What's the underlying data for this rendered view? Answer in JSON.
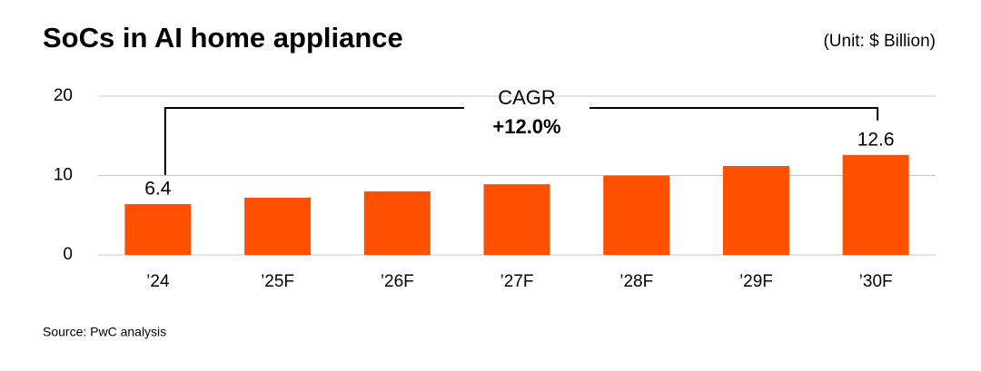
{
  "chart_data": {
    "type": "bar",
    "title": "SoCs in AI home appliance",
    "subtitle": "(Unit: $ Billion)",
    "categories": [
      "’24",
      "’25F",
      "’26F",
      "’27F",
      "’28F",
      "’29F",
      "’30F"
    ],
    "values": [
      6.4,
      7.2,
      8.0,
      8.9,
      10.0,
      11.2,
      12.6
    ],
    "value_labels": [
      "6.4",
      null,
      null,
      null,
      null,
      null,
      "12.6"
    ],
    "color": "#fe5000",
    "ylim": [
      0,
      20
    ],
    "yticks": [
      0,
      10,
      20
    ],
    "grid": true,
    "annotation": {
      "label": "CAGR",
      "value": "+12.0%"
    },
    "source": "Source: PwC analysis"
  }
}
